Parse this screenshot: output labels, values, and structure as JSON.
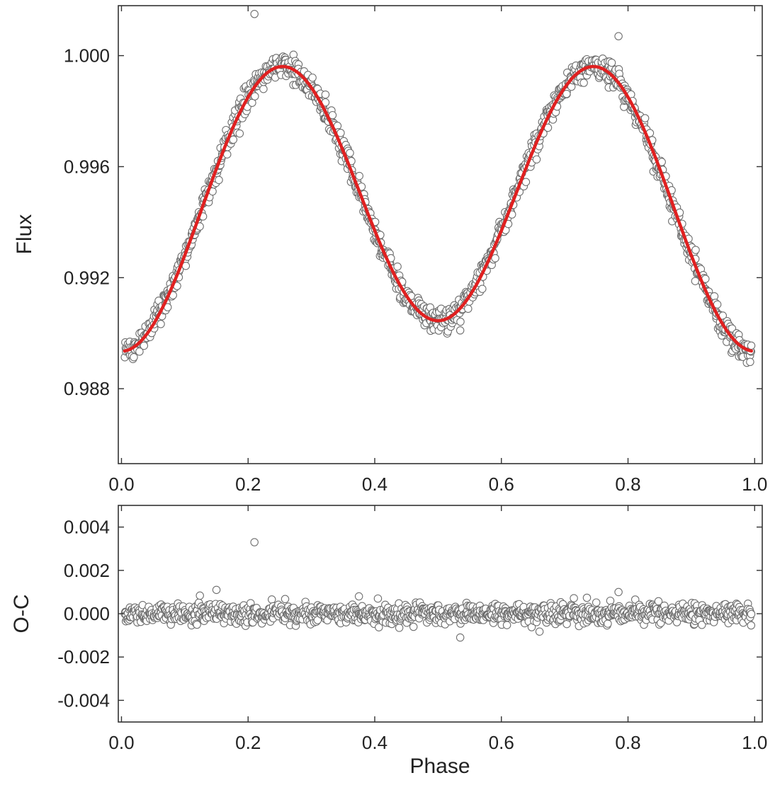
{
  "colors": {
    "model": "#e02020",
    "points": "#6f6f6f",
    "axes": "#333333",
    "text": "#222222"
  },
  "chart_data": [
    {
      "type": "scatter",
      "name": "light-curve",
      "title": "",
      "xlabel": "",
      "ylabel": "Flux",
      "xlim": [
        -0.005,
        1.012
      ],
      "ylim": [
        0.9853,
        1.0018
      ],
      "xticks": [
        0.0,
        0.2,
        0.4,
        0.6,
        0.8,
        1.0
      ],
      "xtick_labels": [
        "0.0",
        "0.2",
        "0.4",
        "0.6",
        "0.8",
        "1.0"
      ],
      "yticks": [
        0.988,
        0.992,
        0.996,
        1.0
      ],
      "ytick_labels": [
        "0.988",
        "0.992",
        "0.996",
        "1.000"
      ],
      "model": {
        "name": "model fit",
        "mean": 0.99475,
        "cos_amp_2phase": -0.00485,
        "cos_amp_1phase": -0.00055
      },
      "observed_scatter_sigma": 0.00022,
      "outliers": [
        {
          "x": 0.21,
          "y": 1.0015
        },
        {
          "x": 0.535,
          "y": 0.9901
        },
        {
          "x": 0.785,
          "y": 1.0007
        }
      ],
      "grid": false,
      "legend": "none"
    },
    {
      "type": "scatter",
      "name": "residuals",
      "title": "",
      "xlabel": "Phase",
      "ylabel": "O-C",
      "xlim": [
        -0.005,
        1.012
      ],
      "ylim": [
        -0.005,
        0.005
      ],
      "xticks": [
        0.0,
        0.2,
        0.4,
        0.6,
        0.8,
        1.0
      ],
      "xtick_labels": [
        "0.0",
        "0.2",
        "0.4",
        "0.6",
        "0.8",
        "1.0"
      ],
      "yticks": [
        -0.004,
        -0.002,
        0.0,
        0.002,
        0.004
      ],
      "ytick_labels": [
        "-0.004",
        "-0.002",
        "0.000",
        "0.002",
        "0.004"
      ],
      "zero_line": 0.0,
      "observed_scatter_sigma": 0.00022,
      "outliers": [
        {
          "x": 0.15,
          "y": 0.0011
        },
        {
          "x": 0.21,
          "y": 0.0033
        },
        {
          "x": 0.375,
          "y": 0.0008
        },
        {
          "x": 0.405,
          "y": 0.0007
        },
        {
          "x": 0.535,
          "y": -0.0011
        },
        {
          "x": 0.785,
          "y": 0.001
        }
      ],
      "grid": false,
      "legend": "none"
    }
  ]
}
